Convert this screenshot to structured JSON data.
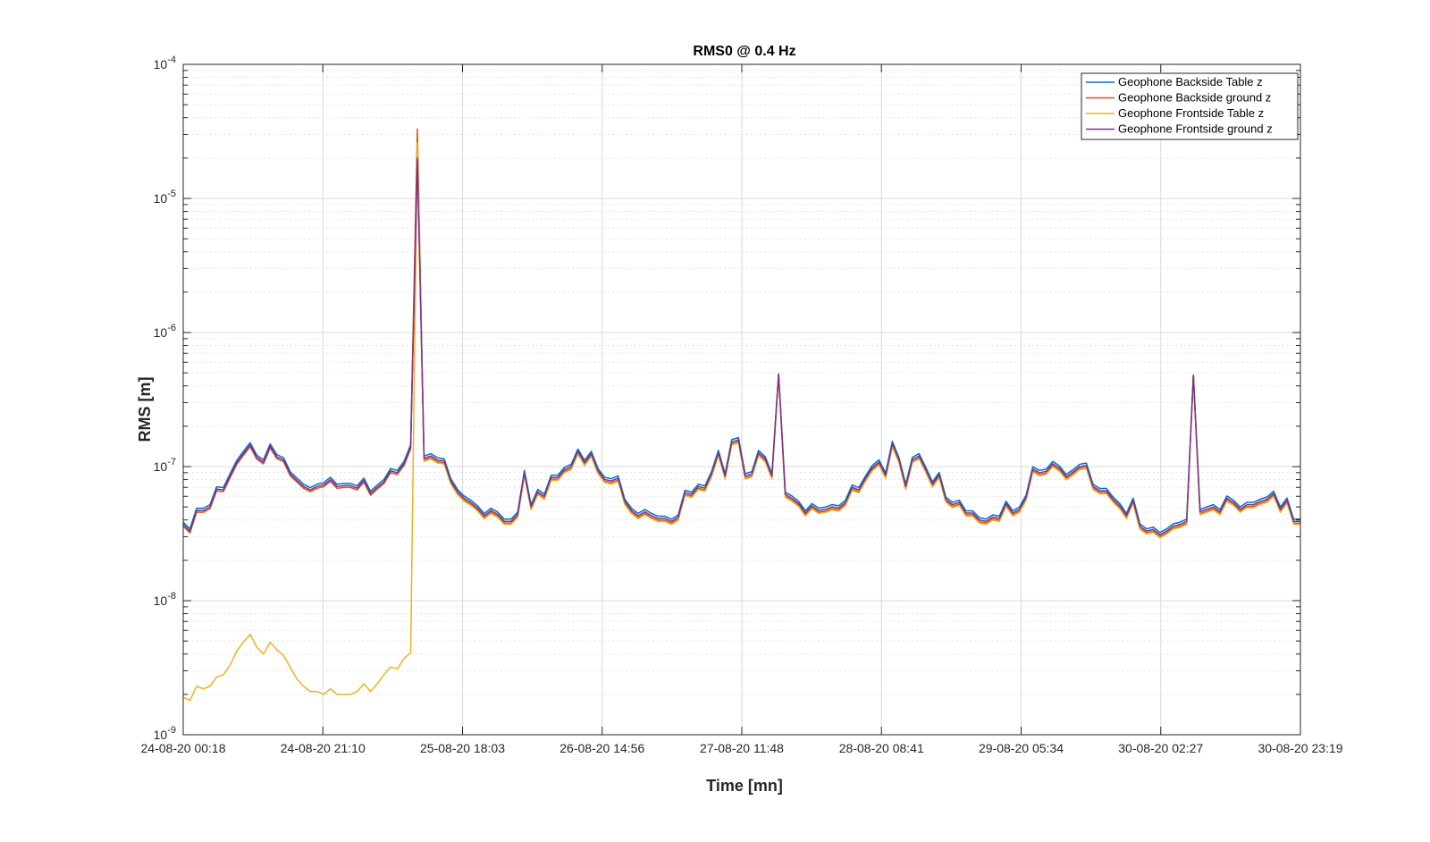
{
  "chart_data": {
    "type": "line",
    "title": "RMS0 @ 0.4 Hz",
    "xlabel": "Time [mn]",
    "ylabel": "RMS [m]",
    "yscale": "log",
    "ylim": [
      1e-09,
      0.0001
    ],
    "grid": true,
    "minor_grid": true,
    "legend_position": "top-right",
    "x_tick_labels": [
      "24-08-20 00:18",
      "24-08-20 21:10",
      "25-08-20 18:03",
      "26-08-20 14:56",
      "27-08-20 11:48",
      "28-08-20 08:41",
      "29-08-20 05:34",
      "30-08-20 02:27",
      "30-08-20 23:19"
    ],
    "y_tick_labels": [
      {
        "base": "10",
        "exp": "-9",
        "value": 1e-09
      },
      {
        "base": "10",
        "exp": "-8",
        "value": 1e-08
      },
      {
        "base": "10",
        "exp": "-7",
        "value": 1e-07
      },
      {
        "base": "10",
        "exp": "-6",
        "value": 1e-06
      },
      {
        "base": "10",
        "exp": "-5",
        "value": 1e-05
      },
      {
        "base": "10",
        "exp": "-4",
        "value": 0.0001
      }
    ],
    "x_range": [
      0,
      160
    ],
    "x_tick_values": [
      0,
      20,
      40,
      60,
      80,
      100,
      120,
      140,
      160
    ],
    "common_series": [
      3.7e-08,
      3.3e-08,
      4.7e-08,
      4.7e-08,
      5e-08,
      6.8e-08,
      6.7e-08,
      8.5e-08,
      1.07e-07,
      1.25e-07,
      1.45e-07,
      1.17e-07,
      1.08e-07,
      1.42e-07,
      1.18e-07,
      1.12e-07,
      8.8e-08,
      7.9e-08,
      7.1e-08,
      6.7e-08,
      7.1e-08,
      7.3e-08,
      8e-08,
      7.1e-08,
      7.2e-08,
      7.2e-08,
      6.9e-08,
      7.9e-08,
      6.3e-08,
      7e-08,
      7.7e-08,
      9.3e-08,
      9e-08,
      1.05e-07,
      1.4e-07,
      2e-05,
      1.15e-07,
      1.2e-07,
      1.12e-07,
      1.1e-07,
      7.8e-08,
      6.5e-08,
      5.8e-08,
      5.4e-08,
      4.9e-08,
      4.3e-08,
      4.7e-08,
      4.4e-08,
      3.9e-08,
      3.9e-08,
      4.4e-08,
      9e-08,
      5e-08,
      6.5e-08,
      6e-08,
      8.3e-08,
      8.3e-08,
      9.5e-08,
      1e-07,
      1.3e-07,
      1.07e-07,
      1.25e-07,
      9.3e-08,
      8e-08,
      7.8e-08,
      8.2e-08,
      5.5e-08,
      4.7e-08,
      4.3e-08,
      4.6e-08,
      4.3e-08,
      4.1e-08,
      4.1e-08,
      3.9e-08,
      4.2e-08,
      6.4e-08,
      6.2e-08,
      7.1e-08,
      6.9e-08,
      8.9e-08,
      1.27e-07,
      8.5e-08,
      1.53e-07,
      1.58e-07,
      8.5e-08,
      8.8e-08,
      1.27e-07,
      1.14e-07,
      8.5e-08,
      4.9e-07,
      6.2e-08,
      5.8e-08,
      5.3e-08,
      4.5e-08,
      5.1e-08,
      4.7e-08,
      4.8e-08,
      5e-08,
      4.9e-08,
      5.4e-08,
      7e-08,
      6.7e-08,
      8.2e-08,
      9.8e-08,
      1.08e-07,
      8.6e-08,
      1.48e-07,
      1.12e-07,
      7.1e-08,
      1.13e-07,
      1.2e-07,
      9.5e-08,
      7.4e-08,
      8.7e-08,
      5.7e-08,
      5.2e-08,
      5.4e-08,
      4.5e-08,
      4.5e-08,
      4e-08,
      3.9e-08,
      4.2e-08,
      4.1e-08,
      5.3e-08,
      4.5e-08,
      4.8e-08,
      5.9e-08,
      9.6e-08,
      9e-08,
      9.2e-08,
      1.05e-07,
      9.7e-08,
      8.4e-08,
      9.1e-08,
      1e-07,
      1.02e-07,
      7.1e-08,
      6.6e-08,
      6.6e-08,
      5.7e-08,
      5.1e-08,
      4.3e-08,
      5.6e-08,
      3.6e-08,
      3.3e-08,
      3.4e-08,
      3.1e-08,
      3.3e-08,
      3.6e-08,
      3.7e-08,
      3.9e-08,
      4.8e-07,
      4.6e-08,
      4.8e-08,
      5e-08,
      4.6e-08,
      5.8e-08,
      5.4e-08,
      4.8e-08,
      5.2e-08,
      5.2e-08,
      5.5e-08,
      5.7e-08,
      6.3e-08,
      4.8e-08,
      5.6e-08,
      3.9e-08,
      3.9e-08
    ],
    "early_yellow": [
      1.9e-09,
      1.8e-09,
      2.3e-09,
      2.2e-09,
      2.3e-09,
      2.7e-09,
      2.8e-09,
      3.3e-09,
      4.2e-09,
      4.9e-09,
      5.6e-09,
      4.5e-09,
      4e-09,
      4.9e-09,
      4.3e-09,
      3.9e-09,
      3.2e-09,
      2.6e-09,
      2.3e-09,
      2.1e-09,
      2.1e-09,
      2e-09,
      2.2e-09,
      2e-09,
      2e-09,
      2e-09,
      2.1e-09,
      2.4e-09,
      2.1e-09,
      2.4e-09,
      2.8e-09,
      3.2e-09,
      3.1e-09,
      3.7e-09,
      4.1e-09
    ],
    "spike_index": 35,
    "spike_peaks": {
      "orange": 3.3e-05,
      "yellow": 2.6e-05,
      "blue": 2.1e-05,
      "purple": 2e-05
    },
    "series": [
      {
        "name": "Geophone Backside Table z",
        "color": "#0072BD",
        "offset_factor": 1.04
      },
      {
        "name": "Geophone Backside ground z",
        "color": "#D95319",
        "offset_factor": 0.97
      },
      {
        "name": "Geophone Frontside Table z",
        "color": "#EDB120",
        "offset_factor": 0.95
      },
      {
        "name": "Geophone Frontside ground z",
        "color": "#7E2F8E",
        "offset_factor": 1.0
      }
    ]
  }
}
